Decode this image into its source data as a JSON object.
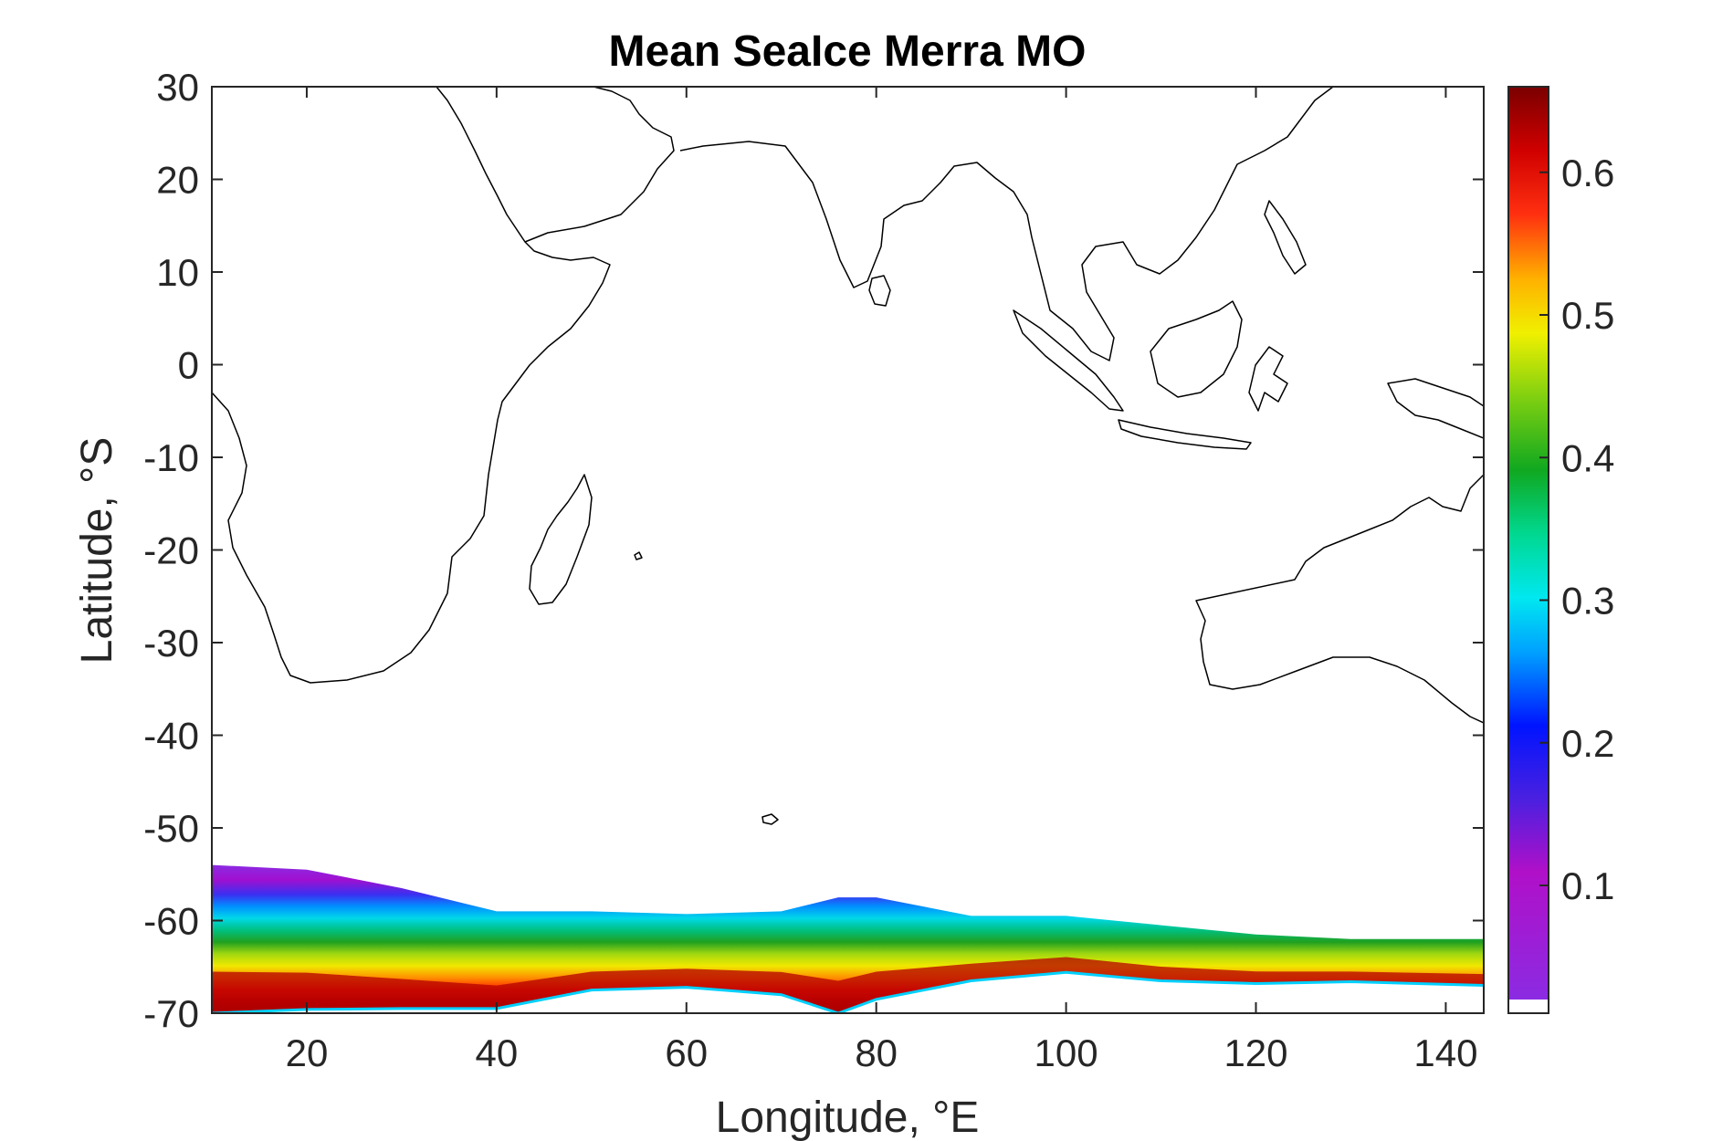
{
  "chart_data": {
    "type": "heatmap",
    "title": "Mean SeaIce Merra MO",
    "xlabel": "Longitude, °E",
    "ylabel": "Latitude, °S",
    "xlim": [
      10,
      144
    ],
    "ylim": [
      -70,
      30
    ],
    "xticks": [
      20,
      40,
      60,
      80,
      100,
      120,
      140
    ],
    "yticks": [
      30,
      20,
      10,
      0,
      -10,
      -20,
      -30,
      -40,
      -50,
      -60,
      -70
    ],
    "colorbar": {
      "range": [
        0.02,
        0.66
      ],
      "ticks": [
        0.1,
        0.2,
        0.3,
        0.4,
        0.5,
        0.6
      ],
      "colormap": "jet-like: violet→blue→cyan→green→yellow→orange→red→dark red",
      "below_min_color": "#ffffff"
    },
    "colors": {
      "low": "#8b2be2",
      "high": "#7a0000",
      "frame": "#262626"
    },
    "sea_ice": {
      "description_lon": [
        10,
        20,
        30,
        40,
        50,
        60,
        70,
        76,
        80,
        90,
        100,
        110,
        120,
        130,
        144
      ],
      "outer_edge_lat": [
        -54,
        -54.5,
        -56.5,
        -59,
        -59,
        -59.3,
        -59,
        -57.5,
        -57.5,
        -59.5,
        -59.5,
        -60.5,
        -61.5,
        -62,
        -62
      ],
      "inner_edge_lat": [
        -70,
        -69.6,
        -69.5,
        -69.5,
        -67.5,
        -67.2,
        -68,
        -70,
        -68.5,
        -66.5,
        -65.6,
        -66.5,
        -66.8,
        -66.6,
        -67
      ],
      "peak_concentration": [
        0.66,
        0.62,
        0.58,
        0.56,
        0.55,
        0.6,
        0.64,
        0.66,
        0.64,
        0.62,
        0.64,
        0.6,
        0.58,
        0.56,
        0.58
      ]
    }
  }
}
